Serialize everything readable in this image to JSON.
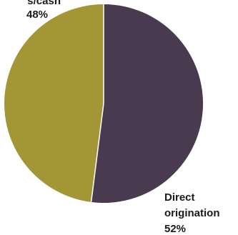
{
  "chart_data": {
    "type": "pie",
    "title": "",
    "slices": [
      {
        "label": "Direct origination",
        "label_lines": [
          "Direct",
          "origination"
        ],
        "value": 52,
        "value_label": "52%",
        "color": "#4a3a4f"
      },
      {
        "label": "s/cash",
        "label_lines": [
          "s/cash"
        ],
        "value": 48,
        "value_label": "48%",
        "color": "#a39637"
      }
    ],
    "start": "top",
    "direction": "clockwise"
  }
}
